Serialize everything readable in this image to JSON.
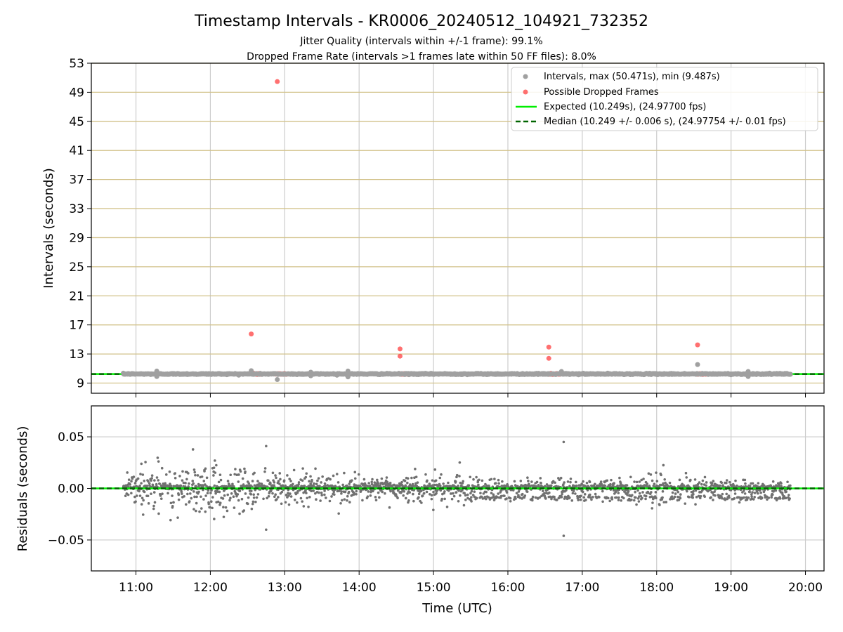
{
  "chart_data": [
    {
      "type": "scatter",
      "title": "Timestamp Intervals - KR0006_20240512_104921_732352",
      "subtitle_lines": [
        "Jitter Quality (intervals within +/-1 frame): 99.1%",
        "Dropped Frame Rate (intervals >1 frames late within 50 FF files): 8.0%"
      ],
      "xlabel": "",
      "ylabel": "Intervals (seconds)",
      "x_range_hours": [
        10.4,
        20.25
      ],
      "ylim": [
        7.6,
        53
      ],
      "yticks": [
        "9",
        "13",
        "17",
        "21",
        "25",
        "29",
        "33",
        "37",
        "41",
        "45",
        "49",
        "53"
      ],
      "grid": true,
      "legend_position": "upper-right",
      "legend": [
        "Intervals, max (50.471s), min (9.487s)",
        "Possible Dropped Frames",
        "Expected (10.249s), (24.97700 fps)",
        "Median (10.249 +/- 0.006 s), (24.97754 +/- 0.01 fps)"
      ],
      "colors": {
        "intervals": "#a0a0a0",
        "dropped": "#ff4040",
        "expected": "#00ee00",
        "median": "#006400",
        "hgrid": "#d2c28a",
        "vgrid": "#cccccc"
      },
      "expected_value": 10.249,
      "median_value": 10.249,
      "series": [
        {
          "name": "Intervals",
          "points": [
            {
              "t": 11.28,
              "v": 10.65
            },
            {
              "t": 11.28,
              "v": 9.9
            },
            {
              "t": 12.55,
              "v": 10.7
            },
            {
              "t": 12.9,
              "v": 9.487
            },
            {
              "t": 13.35,
              "v": 10.5
            },
            {
              "t": 13.35,
              "v": 10.0
            },
            {
              "t": 13.85,
              "v": 10.65
            },
            {
              "t": 13.85,
              "v": 9.85
            },
            {
              "t": 16.72,
              "v": 10.6
            },
            {
              "t": 18.55,
              "v": 11.55
            },
            {
              "t": 19.23,
              "v": 10.6
            },
            {
              "t": 19.23,
              "v": 9.9
            }
          ]
        },
        {
          "name": "Possible Dropped Frames",
          "points": [
            {
              "t": 12.9,
              "v": 50.471
            },
            {
              "t": 12.55,
              "v": 15.75
            },
            {
              "t": 12.55,
              "v": 10.55
            },
            {
              "t": 12.58,
              "v": 10.35
            },
            {
              "t": 14.55,
              "v": 13.7
            },
            {
              "t": 14.55,
              "v": 12.7
            },
            {
              "t": 16.55,
              "v": 13.95
            },
            {
              "t": 16.55,
              "v": 12.4
            },
            {
              "t": 18.55,
              "v": 14.25
            }
          ],
          "clusters": [
            {
              "t0": 12.57,
              "t1": 12.68
            },
            {
              "t0": 12.88,
              "t1": 13.03
            },
            {
              "t0": 14.53,
              "t1": 14.67
            },
            {
              "t0": 16.53,
              "t1": 16.7
            },
            {
              "t0": 18.53,
              "t1": 18.67
            }
          ]
        }
      ],
      "data_span_hours": [
        10.83,
        19.8
      ]
    },
    {
      "type": "scatter",
      "title": "",
      "xlabel": "Time (UTC)",
      "ylabel": "Residuals (seconds)",
      "x_range_hours": [
        10.4,
        20.25
      ],
      "ylim": [
        -0.08,
        0.08
      ],
      "yticks": [
        "0.05",
        "0.00",
        "−0.05"
      ],
      "xticks": [
        "11:00",
        "12:00",
        "13:00",
        "14:00",
        "15:00",
        "16:00",
        "17:00",
        "18:00",
        "19:00",
        "20:00"
      ],
      "grid": true,
      "colors": {
        "residuals": "#707070",
        "zero": "#00ee00",
        "median": "#006400",
        "grid": "#cccccc"
      },
      "residuals": {
        "count_approx": 3000,
        "time_span_hours": [
          10.83,
          19.8
        ],
        "spread_profile": [
          {
            "t": 10.85,
            "spread": 0.008
          },
          {
            "t": 11.3,
            "spread": 0.025
          },
          {
            "t": 11.8,
            "spread": 0.022
          },
          {
            "t": 12.3,
            "spread": 0.022
          },
          {
            "t": 12.8,
            "spread": 0.018
          },
          {
            "t": 13.5,
            "spread": 0.014
          },
          {
            "t": 14.5,
            "spread": 0.013
          },
          {
            "t": 15.5,
            "spread": 0.012
          },
          {
            "t": 16.5,
            "spread": 0.01
          },
          {
            "t": 17.5,
            "spread": 0.01
          },
          {
            "t": 18.0,
            "spread": 0.017
          },
          {
            "t": 18.5,
            "spread": 0.01
          },
          {
            "t": 19.8,
            "spread": 0.006
          }
        ],
        "outliers": [
          {
            "t": 16.75,
            "v": 0.045
          },
          {
            "t": 16.75,
            "v": -0.046
          },
          {
            "t": 12.75,
            "v": 0.041
          },
          {
            "t": 12.75,
            "v": -0.04
          }
        ]
      }
    }
  ]
}
